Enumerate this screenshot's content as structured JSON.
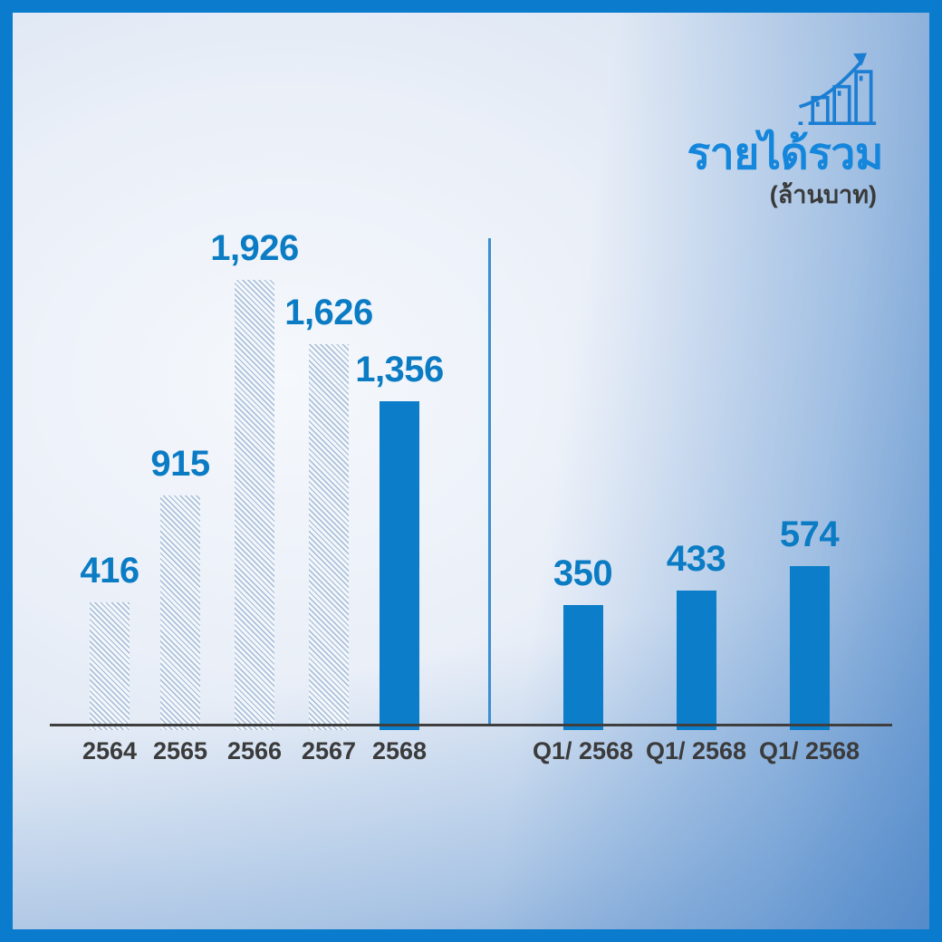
{
  "header": {
    "title": "รายได้รวม",
    "subtitle": "(ล้านบาท)",
    "icon": "growth-chart-icon"
  },
  "colors": {
    "frame": "#0b7ccd",
    "solid_bar": "#0c7dc8",
    "value_label": "#0b7cc4",
    "axis_text": "#3b3b3b",
    "title_blue": "#1486db",
    "divider": "#3a8ed2",
    "hatch_line": "#a0b9d7",
    "hatch_bg": "#f3f6fa"
  },
  "chart_data": {
    "type": "bar",
    "title": "รายได้รวม",
    "unit_label": "(ล้านบาท)",
    "legend_position": "none",
    "grid": false,
    "groups": [
      {
        "name": "annual-revenue",
        "categories": [
          "2564",
          "2565",
          "2566",
          "2567",
          "2568"
        ],
        "values": [
          416,
          915,
          1926,
          1626,
          1356
        ],
        "value_labels": [
          "416",
          "915",
          "1,926",
          "1,626",
          "1,356"
        ],
        "bar_styles": [
          "hatched",
          "hatched",
          "hatched",
          "hatched",
          "solid"
        ]
      },
      {
        "name": "quarterly-revenue",
        "categories": [
          "Q1/ 2568",
          "Q1/ 2568",
          "Q1/ 2568"
        ],
        "values": [
          350,
          433,
          574
        ],
        "value_labels": [
          "350",
          "433",
          "574"
        ],
        "bar_styles": [
          "solid",
          "solid",
          "solid"
        ]
      }
    ]
  }
}
